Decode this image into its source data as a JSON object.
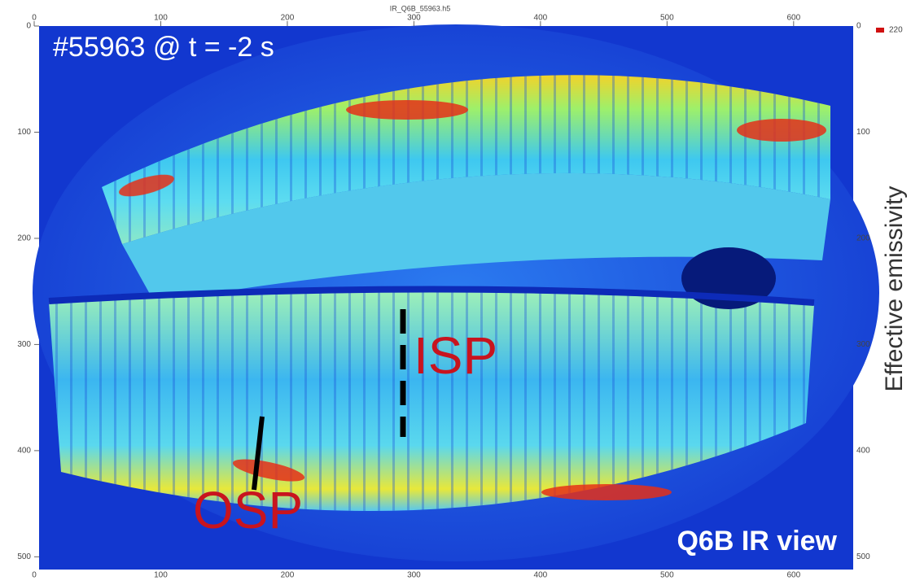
{
  "image": {
    "file_name": "IR_Q6B_55963.h5",
    "xlim": [
      0,
      640
    ],
    "ylim": [
      0,
      512
    ],
    "xticks": [
      0,
      100,
      200,
      300,
      400,
      500,
      600
    ],
    "yticks": [
      0,
      100,
      200,
      300,
      400,
      500
    ],
    "shot_label": "#55963 @ t = -2 s",
    "view_label": "Q6B IR view",
    "isp_label": "ISP",
    "osp_label": "OSP",
    "colorbar_label": "Effective emissivity",
    "colorbar_max": 220
  }
}
